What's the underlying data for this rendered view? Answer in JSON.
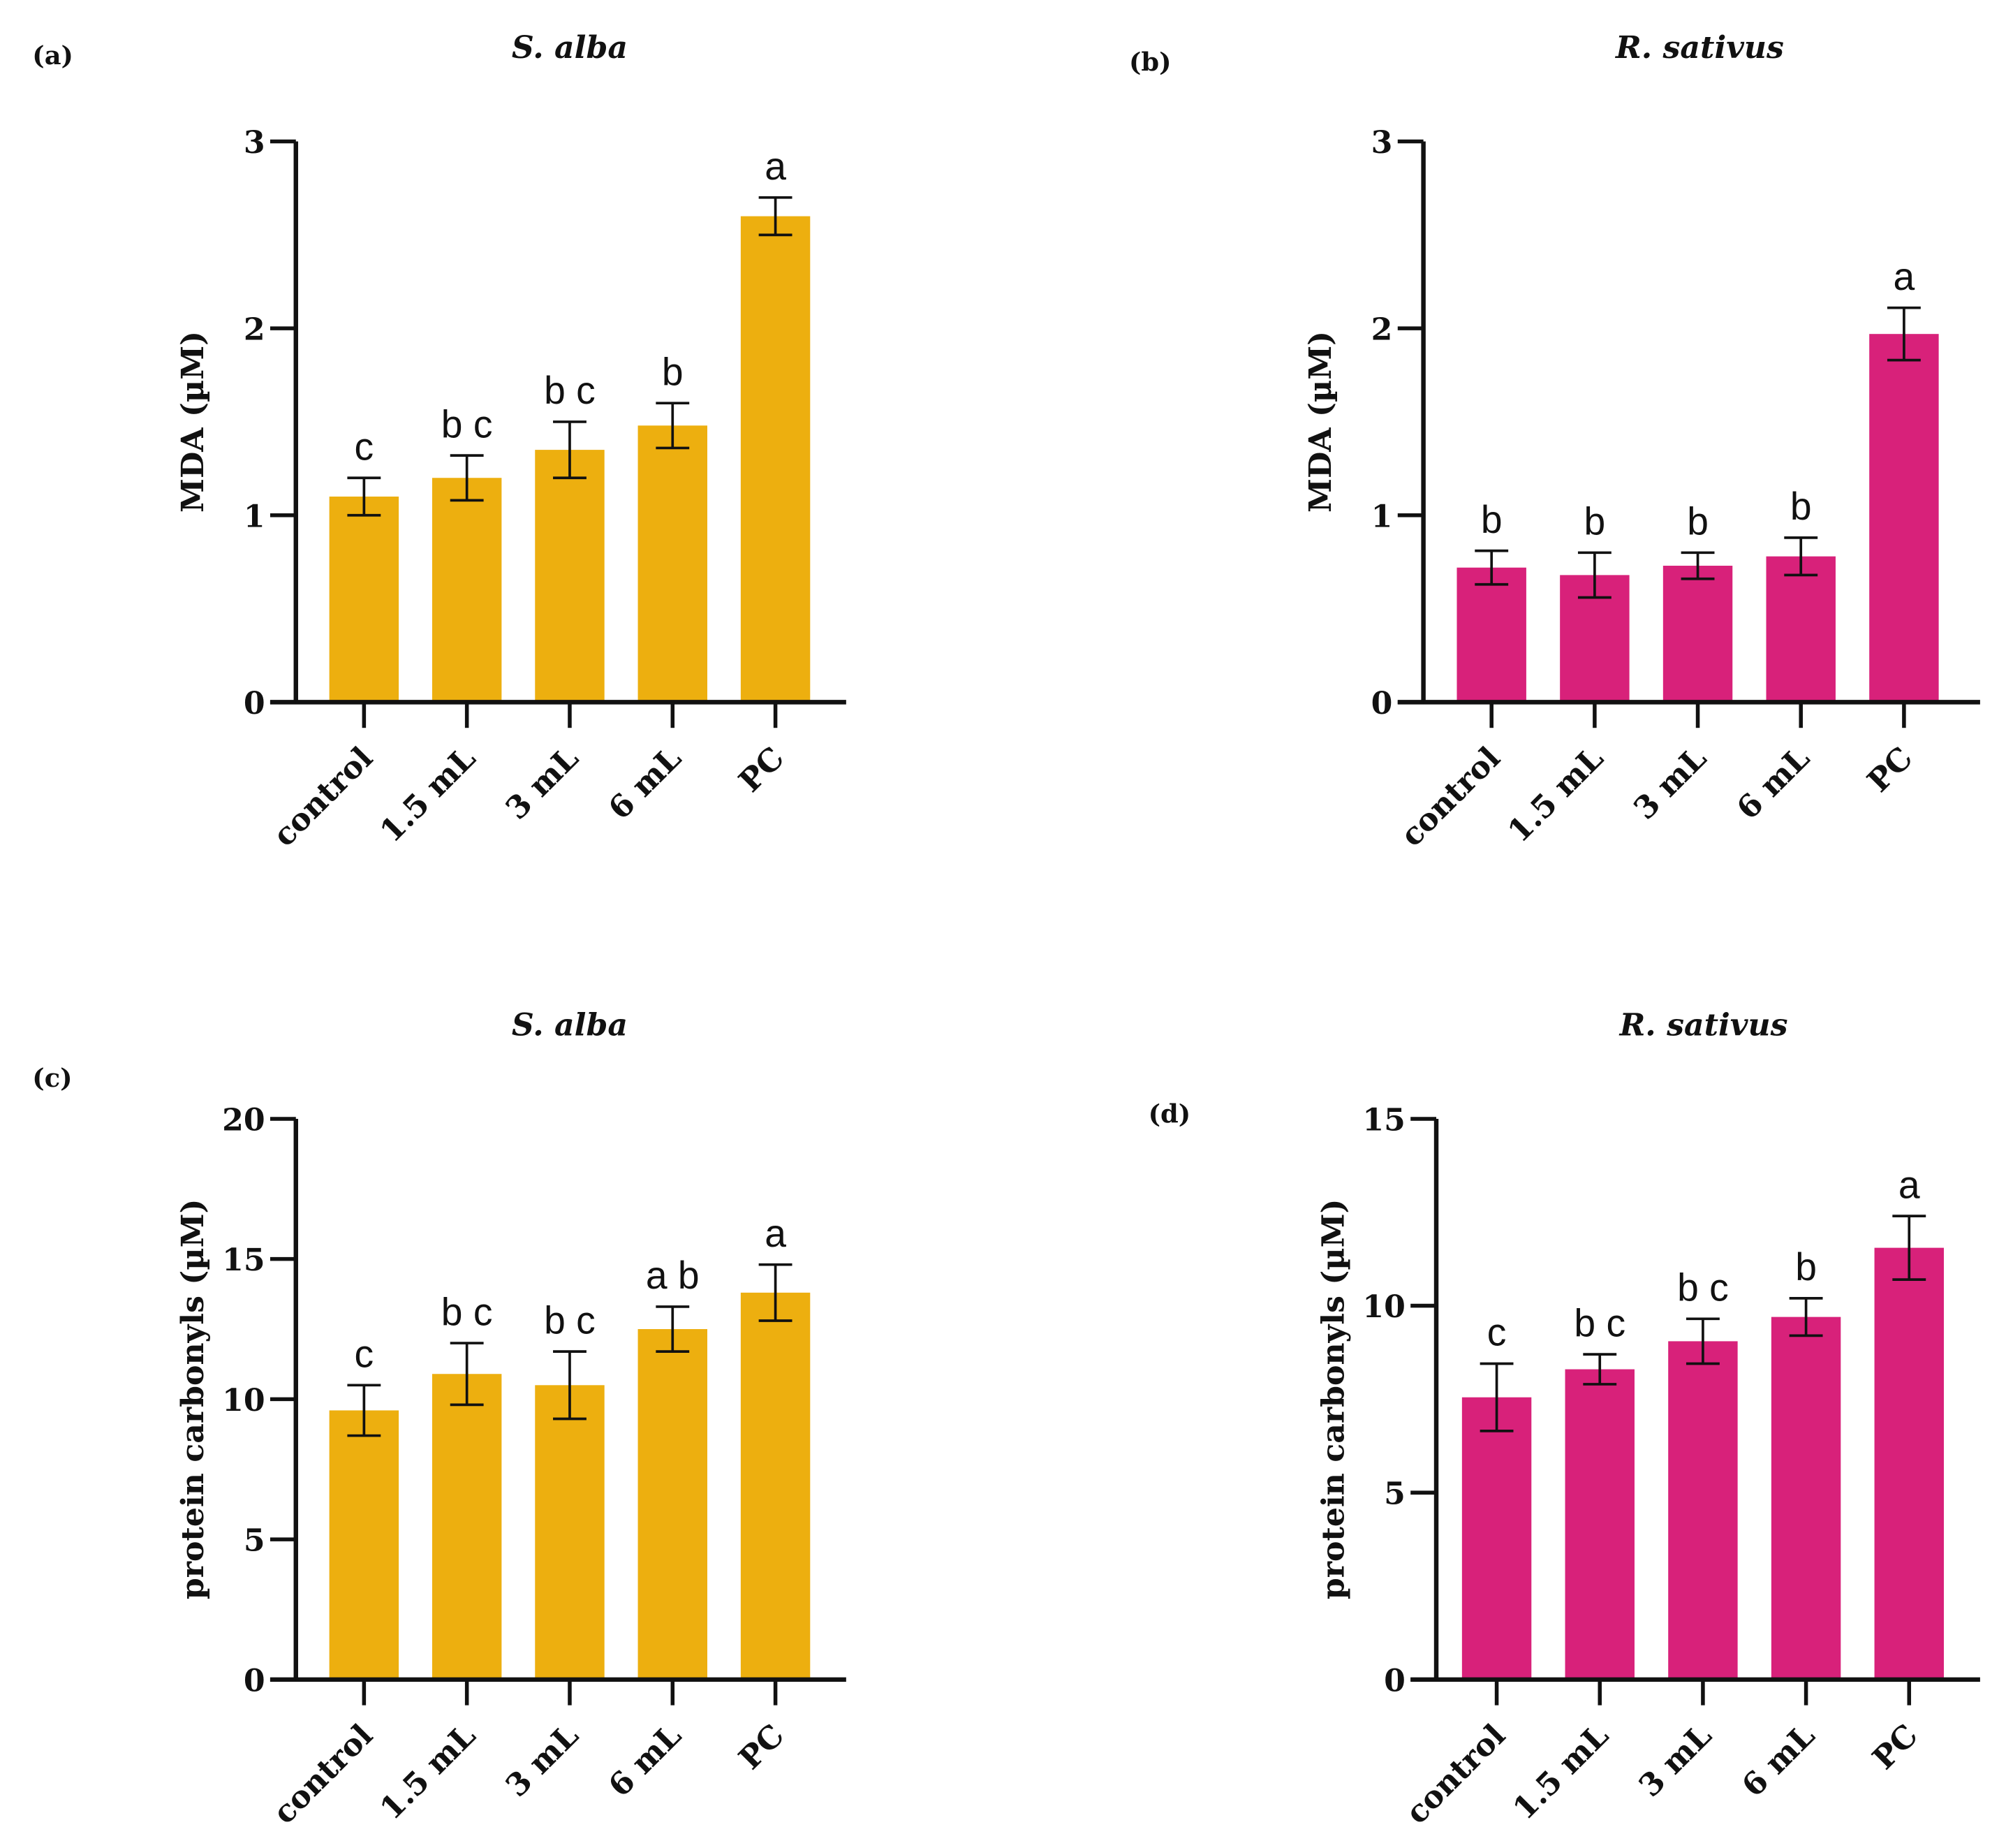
{
  "chart_data": [
    {
      "type": "bar",
      "panel": "(a)",
      "title": "S. alba",
      "ylabel": "MDA (µM)",
      "ylim": [
        0,
        3
      ],
      "yticks": [
        "0",
        "1",
        "2",
        "3"
      ],
      "color": "#EDAF0F",
      "categories": [
        "control",
        "1.5 mL",
        "3 mL",
        "6 mL",
        "PC"
      ],
      "values": [
        1.1,
        1.2,
        1.35,
        1.48,
        2.6
      ],
      "errors": [
        0.1,
        0.12,
        0.15,
        0.12,
        0.1
      ],
      "significance": [
        "c",
        "b c",
        "b c",
        "b",
        "a"
      ]
    },
    {
      "type": "bar",
      "panel": "(b)",
      "title": "R. sativus",
      "ylabel": "MDA (µM)",
      "ylim": [
        0,
        3
      ],
      "yticks": [
        "0",
        "1",
        "2",
        "3"
      ],
      "color": "#D8217A",
      "categories": [
        "control",
        "1.5 mL",
        "3 mL",
        "6 mL",
        "PC"
      ],
      "values": [
        0.72,
        0.68,
        0.73,
        0.78,
        1.97
      ],
      "errors": [
        0.09,
        0.12,
        0.07,
        0.1,
        0.14
      ],
      "significance": [
        "b",
        "b",
        "b",
        "b",
        "a"
      ]
    },
    {
      "type": "bar",
      "panel": "(c)",
      "title": "S. alba",
      "ylabel": "protein carbonyls (µM)",
      "ylim": [
        0,
        20
      ],
      "yticks": [
        "0",
        "5",
        "10",
        "15",
        "20"
      ],
      "color": "#EDAF0F",
      "categories": [
        "control",
        "1.5 mL",
        "3 mL",
        "6 mL",
        "PC"
      ],
      "values": [
        9.6,
        10.9,
        10.5,
        12.5,
        13.8
      ],
      "errors": [
        0.9,
        1.1,
        1.2,
        0.8,
        1.0
      ],
      "significance": [
        "c",
        "b c",
        "b c",
        "a b",
        "a"
      ]
    },
    {
      "type": "bar",
      "panel": "(d)",
      "title": "R. sativus",
      "ylabel": "protein carbonyls (µM)",
      "ylim": [
        0,
        15
      ],
      "yticks": [
        "0",
        "5",
        "10",
        "15"
      ],
      "color": "#D8217A",
      "categories": [
        "control",
        "1.5 mL",
        "3 mL",
        "6 mL",
        "PC"
      ],
      "values": [
        7.55,
        8.3,
        9.05,
        9.7,
        11.55
      ],
      "errors": [
        0.9,
        0.4,
        0.6,
        0.5,
        0.85
      ],
      "significance": [
        "c",
        "b c",
        "b c",
        "b",
        "a"
      ]
    }
  ]
}
